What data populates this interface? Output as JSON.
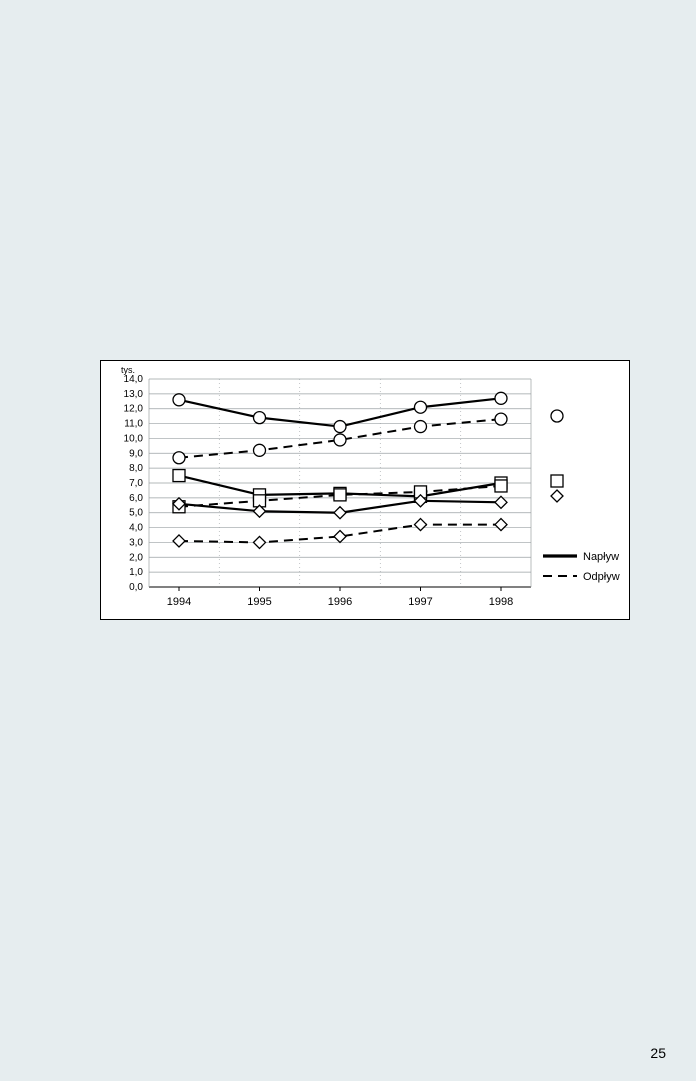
{
  "page_number": "25",
  "chart": {
    "type": "line",
    "y_unit_label": "tys.",
    "background_color": "#ffffff",
    "grid_color": "#9aa0a3",
    "axis_color": "#000000",
    "border_color": "#000000",
    "ylim": [
      0.0,
      14.0
    ],
    "ytick_step": 1.0,
    "ytick_labels": [
      "0,0",
      "1,0",
      "2,0",
      "3,0",
      "4,0",
      "5,0",
      "6,0",
      "7,0",
      "8,0",
      "9,0",
      "10,0",
      "11,0",
      "12,0",
      "13,0",
      "14,0"
    ],
    "x_categories": [
      "1994",
      "1995",
      "1996",
      "1997",
      "1998"
    ],
    "x_label_fontsize": 11,
    "tick_label_fontsize": 10,
    "line_width_solid": 2.2,
    "line_width_dash": 2.0,
    "dash_pattern": "9,6",
    "marker_stroke": "#000000",
    "marker_fill": "#ffffff",
    "marker_size": 6,
    "series": [
      {
        "name": "circle-solid",
        "marker": "circle",
        "style": "solid",
        "color": "#000000",
        "values": [
          12.6,
          11.4,
          10.8,
          12.1,
          12.7
        ]
      },
      {
        "name": "circle-dash",
        "marker": "circle",
        "style": "dash",
        "color": "#000000",
        "values": [
          8.7,
          9.2,
          9.9,
          10.8,
          11.3
        ]
      },
      {
        "name": "square-solid",
        "marker": "square",
        "style": "solid",
        "color": "#000000",
        "values": [
          7.5,
          6.2,
          6.3,
          6.1,
          7.0
        ]
      },
      {
        "name": "square-dash",
        "marker": "square",
        "style": "dash",
        "color": "#000000",
        "values": [
          5.4,
          5.8,
          6.2,
          6.4,
          6.8
        ]
      },
      {
        "name": "diamond-solid",
        "marker": "diamond",
        "style": "solid",
        "color": "#000000",
        "values": [
          5.6,
          5.1,
          5.0,
          5.8,
          5.7
        ]
      },
      {
        "name": "diamond-dash",
        "marker": "diamond",
        "style": "dash",
        "color": "#000000",
        "values": [
          3.1,
          3.0,
          3.4,
          4.2,
          4.2
        ]
      }
    ],
    "marker_legend": [
      {
        "marker": "circle"
      },
      {
        "marker": "square"
      },
      {
        "marker": "diamond"
      }
    ],
    "line_legend": [
      {
        "style": "solid",
        "label": "Napływ"
      },
      {
        "style": "dash",
        "label": "Odpływ"
      }
    ]
  }
}
